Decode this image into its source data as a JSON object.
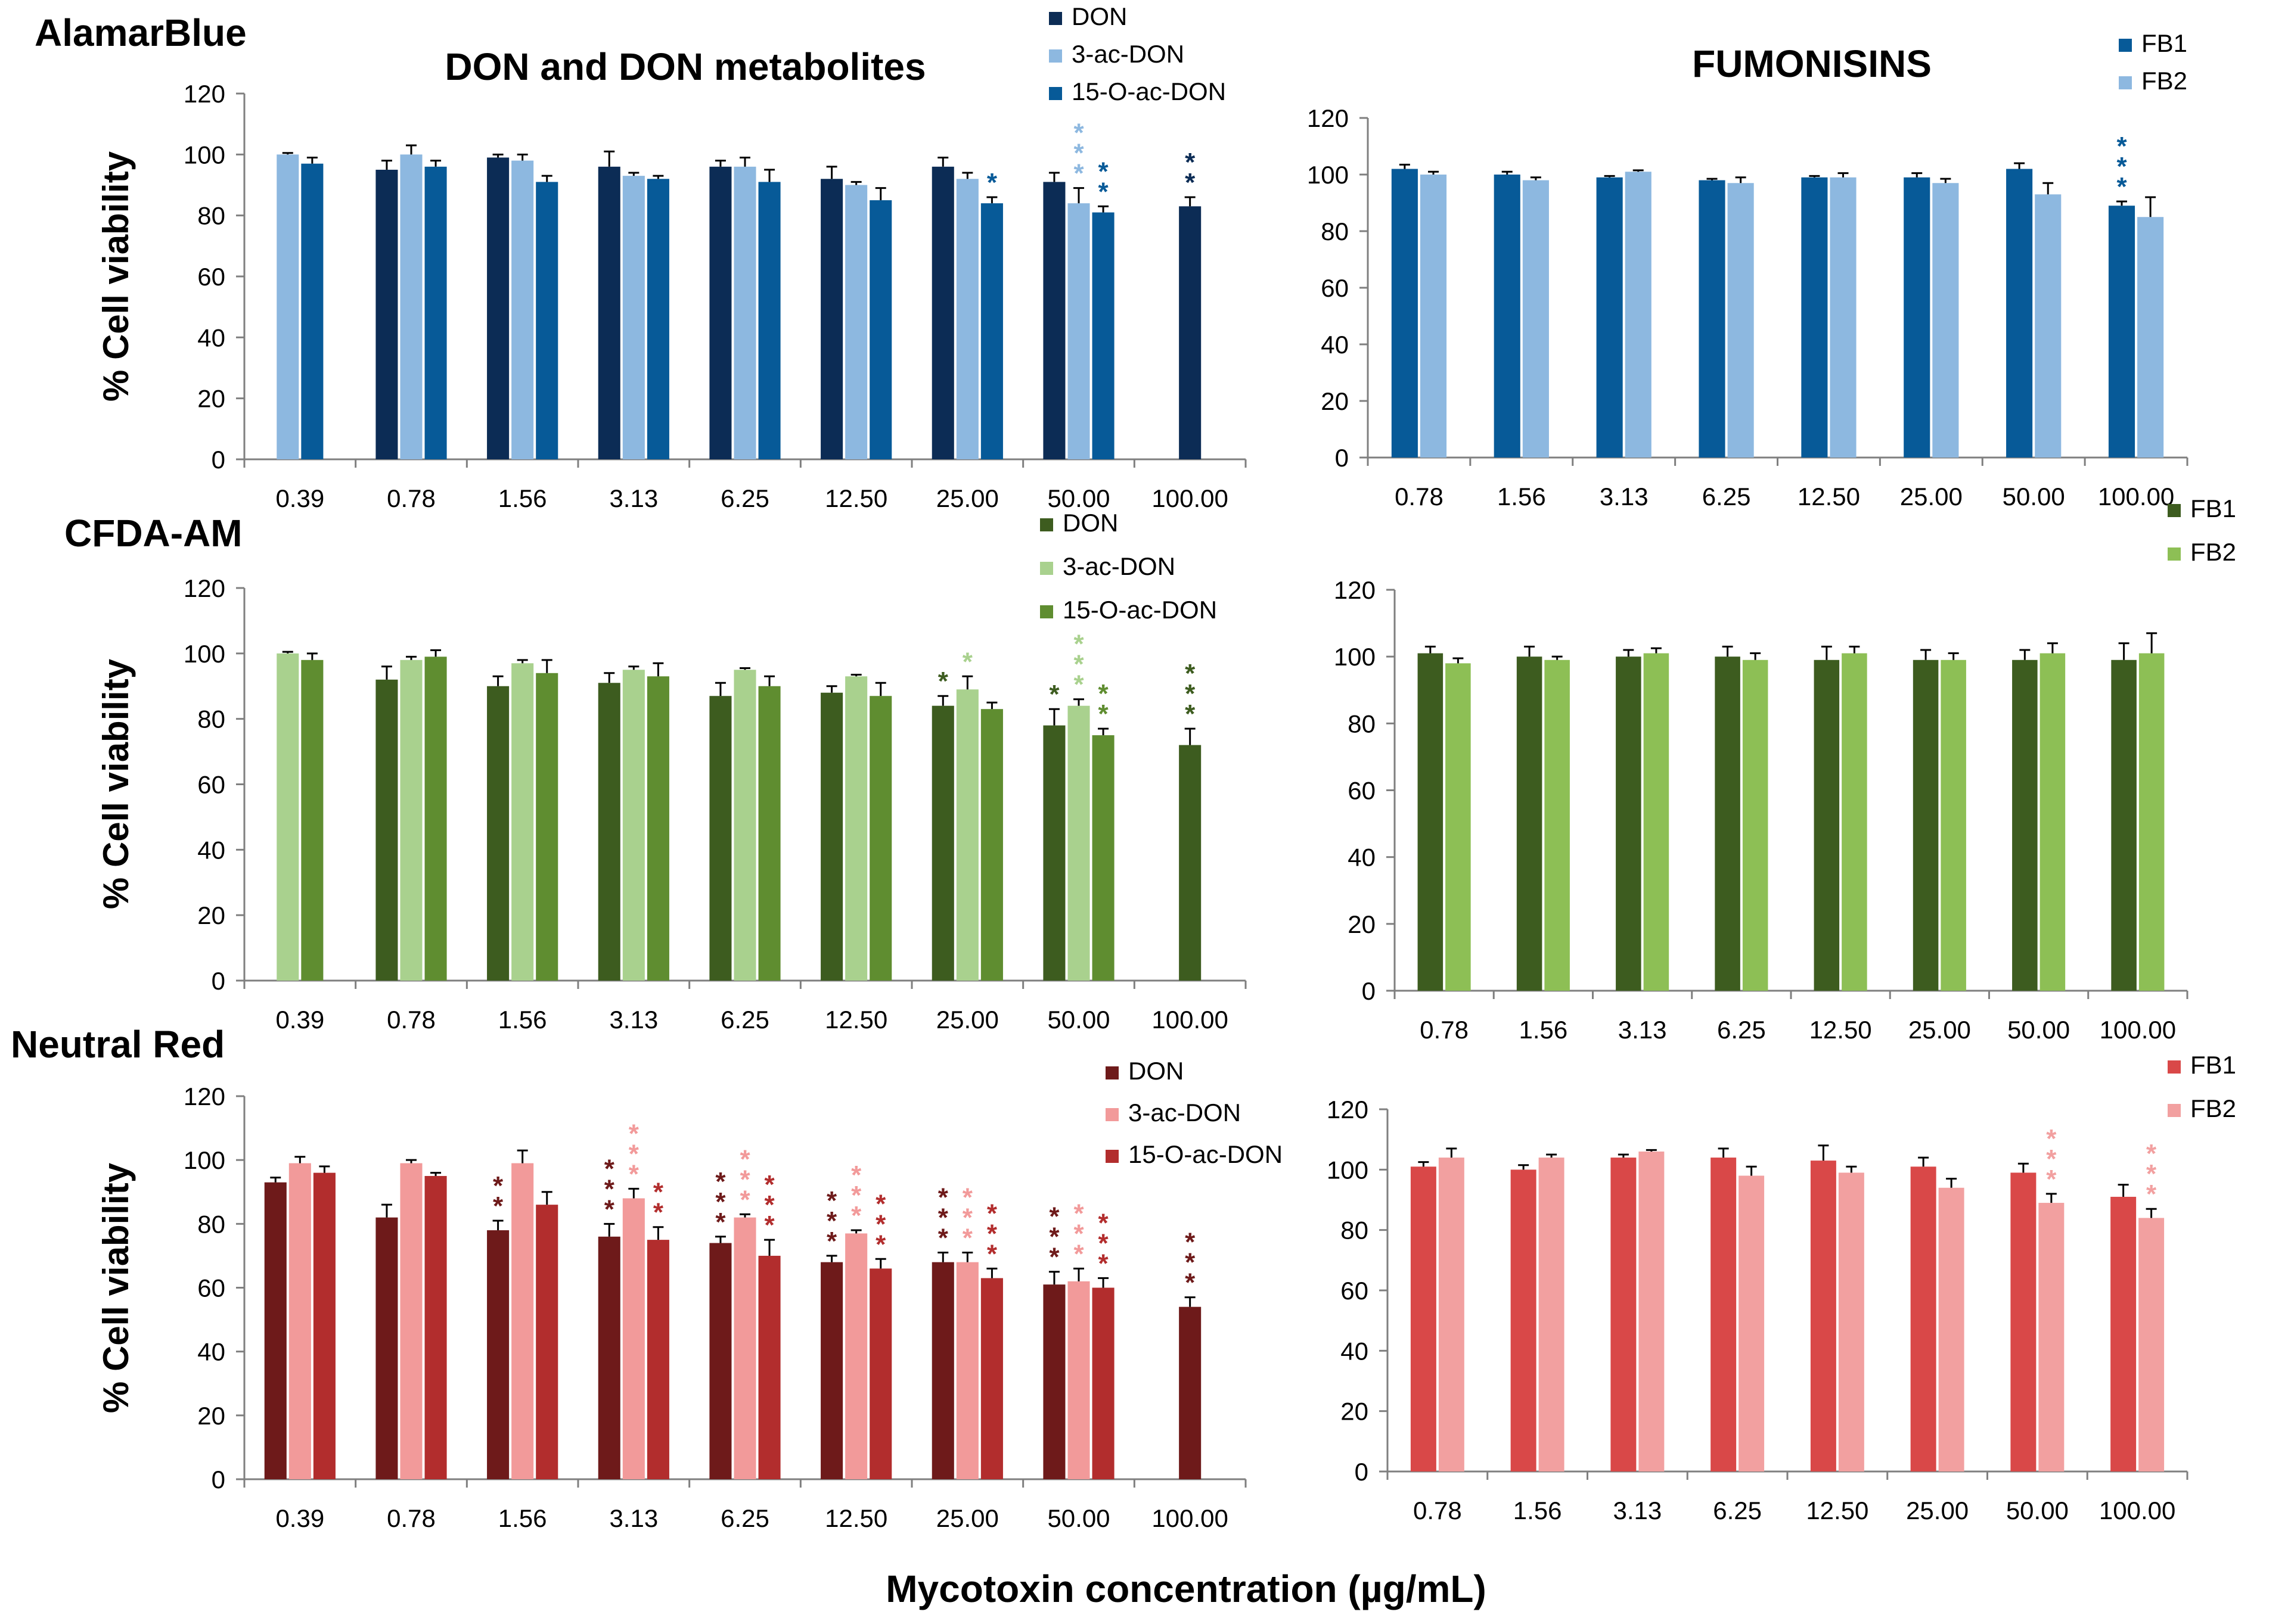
{
  "titles": {
    "left": "DON and DON metabolites",
    "right": "FUMONISINS",
    "x_axis": "Mycotoxin concentration (µg/mL)"
  },
  "row_labels": [
    "AlamarBlue",
    "CFDA-AM",
    "Neutral Red"
  ],
  "colors": {
    "alamar": [
      "#0c2c55",
      "#8db8e0",
      "#075a98"
    ],
    "alamar_fb": [
      "#075a98",
      "#8db8e0"
    ],
    "cfda": [
      "#3d5c1f",
      "#a9d18e",
      "#5f8d30"
    ],
    "cfda_fb": [
      "#3d5c1f",
      "#8dbf55"
    ],
    "nr": [
      "#6e1a1a",
      "#f29a9a",
      "#b22d2d"
    ],
    "nr_fb": [
      "#d94848",
      "#f2a0a0"
    ]
  },
  "chart_data": [
    {
      "id": "alamar-don",
      "type": "bar",
      "ylabel": "% Cell viability",
      "ylim": [
        0,
        120
      ],
      "yticks": [
        0,
        20,
        40,
        60,
        80,
        100,
        120
      ],
      "categories": [
        "0.39",
        "0.78",
        "1.56",
        "3.13",
        "6.25",
        "12.50",
        "25.00",
        "50.00",
        "100.00"
      ],
      "series": [
        {
          "name": "DON",
          "values": [
            null,
            95,
            99,
            96,
            96,
            92,
            96,
            91,
            83
          ],
          "errors": [
            0,
            3,
            1,
            5,
            2,
            4,
            3,
            3,
            3
          ],
          "stars": [
            0,
            0,
            0,
            0,
            0,
            0,
            0,
            0,
            2
          ]
        },
        {
          "name": "3-ac-DON",
          "values": [
            100,
            100,
            98,
            93,
            96,
            90,
            92,
            84,
            null
          ],
          "errors": [
            0.5,
            3,
            2,
            1,
            3,
            1,
            2,
            5,
            0
          ],
          "stars": [
            0,
            0,
            0,
            0,
            0,
            0,
            0,
            3,
            0
          ]
        },
        {
          "name": "15-O-ac-DON",
          "values": [
            97,
            96,
            91,
            92,
            91,
            85,
            84,
            81,
            null
          ],
          "errors": [
            2,
            2,
            2,
            1,
            4,
            4,
            2,
            2,
            0
          ],
          "stars": [
            0,
            0,
            0,
            0,
            0,
            0,
            1,
            2,
            0
          ]
        }
      ]
    },
    {
      "id": "alamar-fb",
      "type": "bar",
      "ylim": [
        0,
        120
      ],
      "yticks": [
        0,
        20,
        40,
        60,
        80,
        100,
        120
      ],
      "categories": [
        "0.78",
        "1.56",
        "3.13",
        "6.25",
        "12.50",
        "25.00",
        "50.00",
        "100.00"
      ],
      "series": [
        {
          "name": "FB1",
          "values": [
            102,
            100,
            99,
            98,
            99,
            99,
            102,
            89
          ],
          "errors": [
            1.5,
            1,
            0.5,
            0.5,
            0.5,
            1.5,
            2,
            1.5
          ],
          "stars": [
            0,
            0,
            0,
            0,
            0,
            0,
            0,
            3
          ]
        },
        {
          "name": "FB2",
          "values": [
            100,
            98,
            101,
            97,
            99,
            97,
            93,
            85
          ],
          "errors": [
            1,
            1,
            0.5,
            2,
            1.5,
            1.5,
            4,
            7
          ],
          "stars": [
            0,
            0,
            0,
            0,
            0,
            0,
            0,
            0
          ]
        }
      ]
    },
    {
      "id": "cfda-don",
      "type": "bar",
      "ylabel": "% Cell viability",
      "ylim": [
        0,
        120
      ],
      "yticks": [
        0,
        20,
        40,
        60,
        80,
        100,
        120
      ],
      "categories": [
        "0.39",
        "0.78",
        "1.56",
        "3.13",
        "6.25",
        "12.50",
        "25.00",
        "50.00",
        "100.00"
      ],
      "series": [
        {
          "name": "DON",
          "values": [
            null,
            92,
            90,
            91,
            87,
            88,
            84,
            78,
            72
          ],
          "errors": [
            0,
            4,
            3,
            3,
            4,
            2,
            3,
            5,
            5
          ],
          "stars": [
            0,
            0,
            0,
            0,
            0,
            0,
            1,
            1,
            3
          ]
        },
        {
          "name": "3-ac-DON",
          "values": [
            100,
            98,
            97,
            95,
            95,
            93,
            89,
            84,
            null
          ],
          "errors": [
            0.5,
            1,
            1,
            1,
            0.5,
            0.5,
            4,
            2,
            0
          ],
          "stars": [
            0,
            0,
            0,
            0,
            0,
            0,
            1,
            3,
            0
          ]
        },
        {
          "name": "15-O-ac-DON",
          "values": [
            98,
            99,
            94,
            93,
            90,
            87,
            83,
            75,
            null
          ],
          "errors": [
            2,
            2,
            4,
            4,
            3,
            4,
            2,
            2,
            0
          ],
          "stars": [
            0,
            0,
            0,
            0,
            0,
            0,
            0,
            2,
            0
          ]
        }
      ]
    },
    {
      "id": "cfda-fb",
      "type": "bar",
      "ylim": [
        0,
        120
      ],
      "yticks": [
        0,
        20,
        40,
        60,
        80,
        100,
        120
      ],
      "categories": [
        "0.78",
        "1.56",
        "3.13",
        "6.25",
        "12.50",
        "25.00",
        "50.00",
        "100.00"
      ],
      "series": [
        {
          "name": "FB1",
          "values": [
            101,
            100,
            100,
            100,
            99,
            99,
            99,
            99
          ],
          "errors": [
            2,
            3,
            2,
            3,
            4,
            3,
            3,
            5
          ],
          "stars": [
            0,
            0,
            0,
            0,
            0,
            0,
            0,
            0
          ]
        },
        {
          "name": "FB2",
          "values": [
            98,
            99,
            101,
            99,
            101,
            99,
            101,
            101
          ],
          "errors": [
            1.5,
            1,
            1.5,
            2,
            2,
            2,
            3,
            6
          ],
          "stars": [
            0,
            0,
            0,
            0,
            0,
            0,
            0,
            0
          ]
        }
      ]
    },
    {
      "id": "nr-don",
      "type": "bar",
      "ylabel": "% Cell viability",
      "ylim": [
        0,
        120
      ],
      "yticks": [
        0,
        20,
        40,
        60,
        80,
        100,
        120
      ],
      "categories": [
        "0.39",
        "0.78",
        "1.56",
        "3.13",
        "6.25",
        "12.50",
        "25.00",
        "50.00",
        "100.00"
      ],
      "series": [
        {
          "name": "DON",
          "values": [
            93,
            82,
            78,
            76,
            74,
            68,
            68,
            61,
            54
          ],
          "errors": [
            1.5,
            4,
            3,
            4,
            2,
            2,
            3,
            4,
            3
          ],
          "stars": [
            0,
            0,
            2,
            3,
            3,
            3,
            3,
            3,
            3
          ]
        },
        {
          "name": "3-ac-DON",
          "values": [
            99,
            99,
            99,
            88,
            82,
            77,
            68,
            62,
            null
          ],
          "errors": [
            2,
            1,
            4,
            3,
            1,
            1,
            3,
            4,
            0
          ],
          "stars": [
            0,
            0,
            0,
            3,
            3,
            3,
            3,
            3,
            0
          ]
        },
        {
          "name": "15-O-ac-DON",
          "values": [
            96,
            95,
            86,
            75,
            70,
            66,
            63,
            60,
            null
          ],
          "errors": [
            2,
            1,
            4,
            4,
            5,
            3,
            3,
            3,
            0
          ],
          "stars": [
            0,
            0,
            0,
            2,
            3,
            3,
            3,
            3,
            0
          ]
        }
      ]
    },
    {
      "id": "nr-fb",
      "type": "bar",
      "ylim": [
        0,
        120
      ],
      "yticks": [
        0,
        20,
        40,
        60,
        80,
        100,
        120
      ],
      "categories": [
        "0.78",
        "1.56",
        "3.13",
        "6.25",
        "12.50",
        "25.00",
        "50.00",
        "100.00"
      ],
      "series": [
        {
          "name": "FB1",
          "values": [
            101,
            100,
            104,
            104,
            103,
            101,
            99,
            91
          ],
          "errors": [
            1.5,
            1.5,
            1,
            3,
            5,
            3,
            3,
            4
          ],
          "stars": [
            0,
            0,
            0,
            0,
            0,
            0,
            0,
            0
          ]
        },
        {
          "name": "FB2",
          "values": [
            104,
            104,
            106,
            98,
            99,
            94,
            89,
            84
          ],
          "errors": [
            3,
            1,
            0.5,
            3,
            2,
            3,
            3,
            3
          ],
          "stars": [
            0,
            0,
            0,
            0,
            0,
            0,
            3,
            3
          ]
        }
      ]
    }
  ]
}
